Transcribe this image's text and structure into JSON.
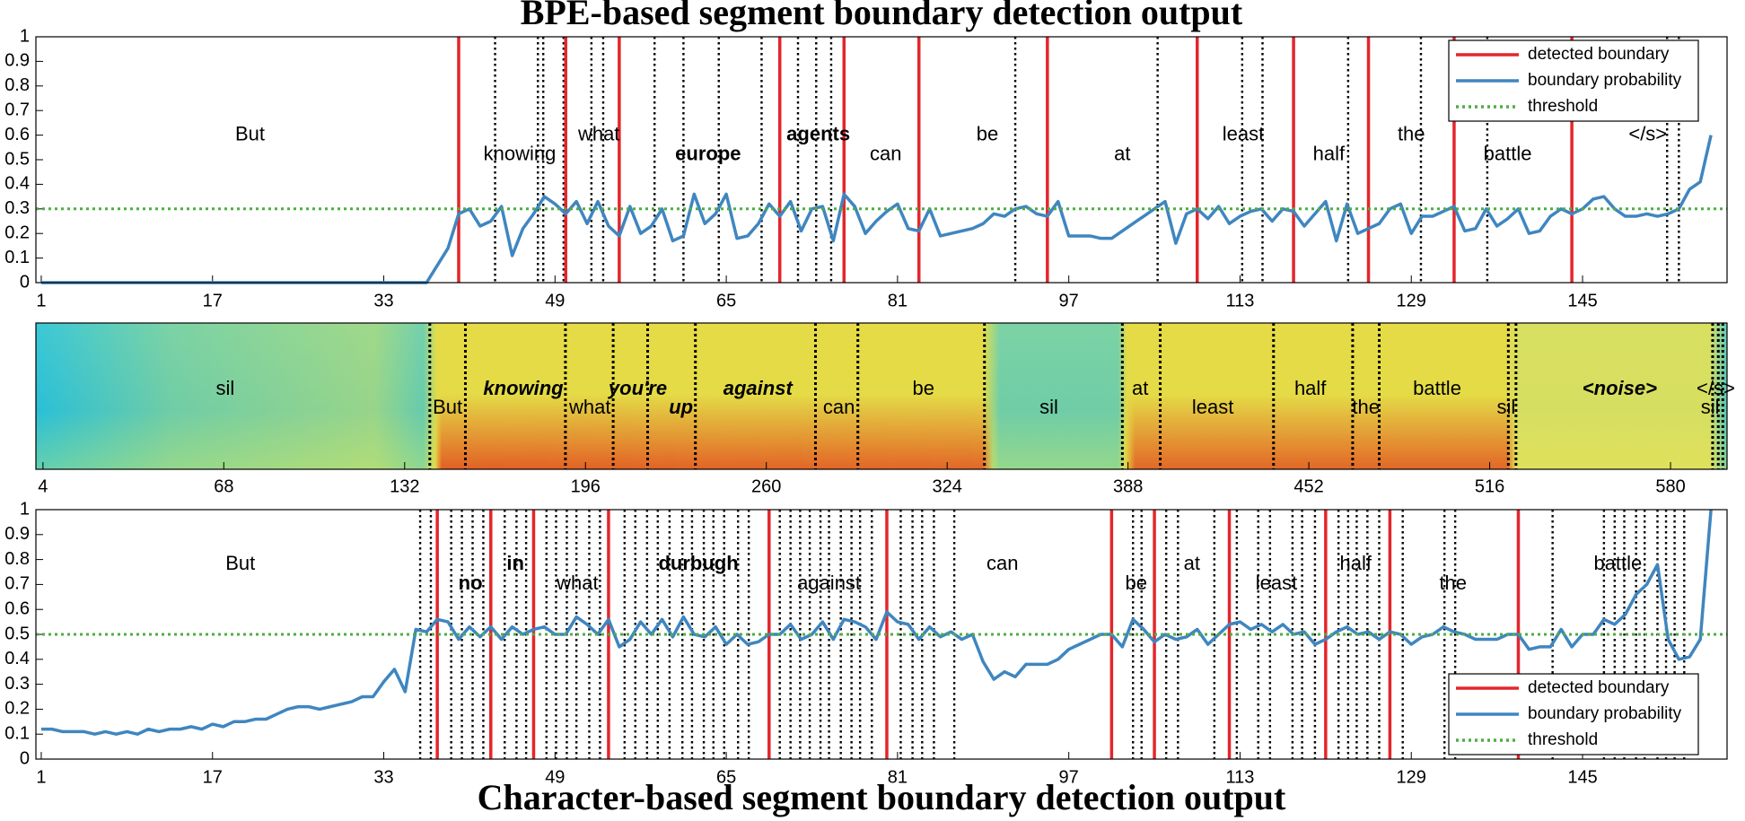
{
  "chart_data": [
    {
      "type": "line",
      "title": "BPE-based segment boundary detection output",
      "x": [
        1,
        2,
        3,
        4,
        5,
        6,
        7,
        8,
        9,
        10,
        11,
        12,
        13,
        14,
        15,
        16,
        17,
        18,
        19,
        20,
        21,
        22,
        23,
        24,
        25,
        26,
        27,
        28,
        29,
        30,
        31,
        32,
        33,
        34,
        35,
        36,
        37,
        38,
        39,
        40,
        41,
        42,
        43,
        44,
        45,
        46,
        47,
        48,
        49,
        50,
        51,
        52,
        53,
        54,
        55,
        56,
        57,
        58,
        59,
        60,
        61,
        62,
        63,
        64,
        65,
        66,
        67,
        68,
        69,
        70,
        71,
        72,
        73,
        74,
        75,
        76,
        77,
        78,
        79,
        80,
        81,
        82,
        83,
        84,
        85,
        86,
        87,
        88,
        89,
        90,
        91,
        92,
        93,
        94,
        95,
        96,
        97,
        98,
        99,
        100,
        101,
        102,
        103,
        104,
        105,
        106,
        107,
        108,
        109,
        110,
        111,
        112,
        113,
        114,
        115,
        116,
        117,
        118,
        119,
        120,
        121,
        122,
        123,
        124,
        125,
        126,
        127,
        128,
        129,
        130,
        131,
        132,
        133,
        134,
        135,
        136,
        137,
        138,
        139,
        140,
        141,
        142,
        143,
        144,
        145,
        146,
        147,
        148,
        149,
        150,
        151,
        152,
        153,
        154,
        155,
        156,
        157
      ],
      "series": [
        {
          "name": "detected boundary",
          "color": "#e3262c",
          "x": [
            40,
            50,
            55,
            70,
            76,
            83,
            95,
            109,
            118,
            125,
            133,
            144
          ]
        },
        {
          "name": "boundary probability",
          "color": "#3f86c0",
          "values": [
            0,
            0,
            0,
            0,
            0,
            0,
            0,
            0,
            0,
            0,
            0,
            0,
            0,
            0,
            0,
            0,
            0,
            0,
            0,
            0,
            0,
            0,
            0,
            0,
            0,
            0,
            0,
            0,
            0,
            0,
            0,
            0,
            0,
            0,
            0,
            0,
            0,
            0.07,
            0.14,
            0.28,
            0.3,
            0.23,
            0.25,
            0.31,
            0.11,
            0.22,
            0.28,
            0.35,
            0.32,
            0.28,
            0.33,
            0.24,
            0.33,
            0.23,
            0.19,
            0.31,
            0.2,
            0.23,
            0.3,
            0.17,
            0.19,
            0.36,
            0.24,
            0.28,
            0.36,
            0.18,
            0.19,
            0.24,
            0.32,
            0.27,
            0.33,
            0.21,
            0.3,
            0.31,
            0.17,
            0.36,
            0.31,
            0.2,
            0.25,
            0.29,
            0.32,
            0.22,
            0.21,
            0.3,
            0.19,
            0.2,
            0.21,
            0.22,
            0.24,
            0.28,
            0.27,
            0.3,
            0.31,
            0.28,
            0.27,
            0.33,
            0.19,
            0.19,
            0.19,
            0.18,
            0.18,
            0.21,
            0.24,
            0.27,
            0.3,
            0.33,
            0.16,
            0.28,
            0.3,
            0.26,
            0.31,
            0.24,
            0.27,
            0.29,
            0.3,
            0.25,
            0.3,
            0.29,
            0.23,
            0.28,
            0.33,
            0.17,
            0.32,
            0.2,
            0.22,
            0.24,
            0.3,
            0.32,
            0.2,
            0.27,
            0.27,
            0.29,
            0.31,
            0.21,
            0.22,
            0.3,
            0.23,
            0.26,
            0.3,
            0.2,
            0.21,
            0.27,
            0.3,
            0.28,
            0.3,
            0.34,
            0.35,
            0.3,
            0.27,
            0.27,
            0.28,
            0.27,
            0.28,
            0.3,
            0.38,
            0.41,
            0.6
          ]
        },
        {
          "name": "threshold",
          "color": "#4fad44",
          "value": 0.3
        }
      ],
      "reference_boundaries": [
        43.4,
        47.4,
        47.9,
        49.8,
        52.4,
        53.5,
        58.3,
        61,
        64.3,
        68.3,
        71.7,
        73.4,
        74.8,
        92,
        105.3,
        113.2,
        115.1,
        123.1,
        129.9,
        136.1,
        152.9,
        154
      ],
      "words": [
        {
          "text": "But",
          "x": 20.5,
          "y": 0.6
        },
        {
          "text": "knowing",
          "x": 45.7,
          "y": 0.52
        },
        {
          "text": "what",
          "x": 53.1,
          "y": 0.6
        },
        {
          "text": "europe",
          "x": 63.3,
          "y": 0.52,
          "color": "#e3262c",
          "style": "bold"
        },
        {
          "text": "agents",
          "x": 73.6,
          "y": 0.6,
          "color": "#e3262c",
          "style": "bold"
        },
        {
          "text": "can",
          "x": 79.9,
          "y": 0.52
        },
        {
          "text": "be",
          "x": 89.4,
          "y": 0.6
        },
        {
          "text": "at",
          "x": 102,
          "y": 0.52
        },
        {
          "text": "least",
          "x": 113.3,
          "y": 0.6
        },
        {
          "text": "half",
          "x": 121.3,
          "y": 0.52
        },
        {
          "text": "the",
          "x": 129,
          "y": 0.6
        },
        {
          "text": "battle",
          "x": 138,
          "y": 0.52
        },
        {
          "text": "</s>",
          "x": 151.1,
          "y": 0.6
        }
      ],
      "xlim": [
        0.5,
        158.5
      ],
      "xticks": [
        1,
        17,
        33,
        49,
        65,
        81,
        97,
        113,
        129,
        145
      ],
      "ylim": [
        0,
        1
      ],
      "yticks": [
        0,
        0.1,
        0.2,
        0.3,
        0.4,
        0.5,
        0.6,
        0.7,
        0.8,
        0.9,
        1
      ],
      "legend": "upper right"
    },
    {
      "type": "spectrogram",
      "xlim": [
        1.5,
        600
      ],
      "xticks": [
        4,
        68,
        132,
        196,
        260,
        324,
        388,
        452,
        516,
        580
      ],
      "boundaries": [
        140.9,
        153.5,
        188.9,
        205.8,
        218,
        234.9,
        277.4,
        292.4,
        337.2,
        386,
        399.4,
        439.5,
        467.5,
        476.9,
        522.6,
        525.3,
        594.9,
        596.9,
        598.5
      ],
      "words": [
        {
          "text": "sil",
          "x": 68.5
        },
        {
          "text": "But",
          "x": 147.2
        },
        {
          "text": "knowing",
          "x": 174,
          "style": "bold-italic"
        },
        {
          "text": "what",
          "x": 197.6
        },
        {
          "text": "you're",
          "x": 214.5,
          "style": "bold-italic"
        },
        {
          "text": "up",
          "x": 229.8,
          "style": "bold-italic"
        },
        {
          "text": "against",
          "x": 257,
          "style": "bold-italic"
        },
        {
          "text": "can",
          "x": 285.7
        },
        {
          "text": "be",
          "x": 315.6
        },
        {
          "text": "sil",
          "x": 360
        },
        {
          "text": "at",
          "x": 392.3
        },
        {
          "text": "least",
          "x": 418
        },
        {
          "text": "half",
          "x": 452.5
        },
        {
          "text": "the",
          "x": 472.2
        },
        {
          "text": "battle",
          "x": 497.4
        },
        {
          "text": "sil",
          "x": 521.8
        },
        {
          "text": "<noise>",
          "x": 562,
          "color": "#e3262c",
          "style": "bold-italic"
        },
        {
          "text": "sil",
          "x": 594
        },
        {
          "text": "</s>",
          "x": 596
        }
      ]
    },
    {
      "type": "line",
      "title": "Character-based segment boundary detection output",
      "x": [
        1,
        2,
        3,
        4,
        5,
        6,
        7,
        8,
        9,
        10,
        11,
        12,
        13,
        14,
        15,
        16,
        17,
        18,
        19,
        20,
        21,
        22,
        23,
        24,
        25,
        26,
        27,
        28,
        29,
        30,
        31,
        32,
        33,
        34,
        35,
        36,
        37,
        38,
        39,
        40,
        41,
        42,
        43,
        44,
        45,
        46,
        47,
        48,
        49,
        50,
        51,
        52,
        53,
        54,
        55,
        56,
        57,
        58,
        59,
        60,
        61,
        62,
        63,
        64,
        65,
        66,
        67,
        68,
        69,
        70,
        71,
        72,
        73,
        74,
        75,
        76,
        77,
        78,
        79,
        80,
        81,
        82,
        83,
        84,
        85,
        86,
        87,
        88,
        89,
        90,
        91,
        92,
        93,
        94,
        95,
        96,
        97,
        98,
        99,
        100,
        101,
        102,
        103,
        104,
        105,
        106,
        107,
        108,
        109,
        110,
        111,
        112,
        113,
        114,
        115,
        116,
        117,
        118,
        119,
        120,
        121,
        122,
        123,
        124,
        125,
        126,
        127,
        128,
        129,
        130,
        131,
        132,
        133,
        134,
        135,
        136,
        137,
        138,
        139,
        140,
        141,
        142,
        143,
        144,
        145,
        146,
        147,
        148,
        149,
        150,
        151,
        152,
        153,
        154,
        155,
        156,
        157
      ],
      "series": [
        {
          "name": "detected boundary",
          "color": "#e3262c",
          "x": [
            38,
            43,
            47,
            54,
            69,
            80,
            101,
            105,
            112,
            121,
            127,
            139
          ]
        },
        {
          "name": "boundary probability",
          "color": "#3f86c0",
          "values": [
            0.12,
            0.12,
            0.11,
            0.11,
            0.11,
            0.1,
            0.11,
            0.1,
            0.11,
            0.1,
            0.12,
            0.11,
            0.12,
            0.12,
            0.13,
            0.12,
            0.14,
            0.13,
            0.15,
            0.15,
            0.16,
            0.16,
            0.18,
            0.2,
            0.21,
            0.21,
            0.2,
            0.21,
            0.22,
            0.23,
            0.25,
            0.25,
            0.31,
            0.36,
            0.27,
            0.52,
            0.51,
            0.56,
            0.55,
            0.48,
            0.53,
            0.49,
            0.53,
            0.48,
            0.53,
            0.5,
            0.52,
            0.53,
            0.5,
            0.5,
            0.57,
            0.54,
            0.5,
            0.56,
            0.45,
            0.48,
            0.55,
            0.5,
            0.56,
            0.49,
            0.57,
            0.5,
            0.49,
            0.53,
            0.46,
            0.5,
            0.46,
            0.47,
            0.5,
            0.5,
            0.54,
            0.48,
            0.5,
            0.55,
            0.48,
            0.56,
            0.55,
            0.53,
            0.48,
            0.59,
            0.55,
            0.54,
            0.48,
            0.53,
            0.49,
            0.51,
            0.48,
            0.5,
            0.39,
            0.32,
            0.35,
            0.33,
            0.38,
            0.38,
            0.38,
            0.4,
            0.44,
            0.46,
            0.48,
            0.5,
            0.5,
            0.45,
            0.56,
            0.52,
            0.47,
            0.5,
            0.48,
            0.49,
            0.52,
            0.46,
            0.5,
            0.54,
            0.55,
            0.52,
            0.54,
            0.51,
            0.54,
            0.5,
            0.51,
            0.46,
            0.48,
            0.51,
            0.53,
            0.5,
            0.51,
            0.48,
            0.51,
            0.5,
            0.46,
            0.49,
            0.5,
            0.53,
            0.51,
            0.5,
            0.48,
            0.48,
            0.48,
            0.5,
            0.5,
            0.44,
            0.45,
            0.45,
            0.52,
            0.45,
            0.5,
            0.5,
            0.56,
            0.54,
            0.58,
            0.66,
            0.7,
            0.78,
            0.48,
            0.4,
            0.41,
            0.48,
            1.0
          ]
        },
        {
          "name": "threshold",
          "color": "#4fad44",
          "value": 0.5
        }
      ],
      "reference_boundaries": [
        36.4,
        37.4,
        39.3,
        40.3,
        41.3,
        42.3,
        44.3,
        45.4,
        46.3,
        48.2,
        49.1,
        50.1,
        51,
        52.2,
        53.2,
        55.5,
        56.5,
        57.6,
        58.6,
        59.7,
        60.9,
        61.8,
        62.9,
        63.8,
        64.8,
        66.1,
        67.1,
        70,
        71,
        71.9,
        72.8,
        73.8,
        74.6,
        75.7,
        76.7,
        77.5,
        78.6,
        81.3,
        82.4,
        83.3,
        84.4,
        86.3,
        103,
        103.8,
        106.1,
        107.2,
        110.6,
        112.7,
        114.7,
        115.8,
        117.9,
        118.8,
        120,
        122.2,
        123.1,
        123.9,
        124.9,
        126,
        128.2,
        132.1,
        133.1,
        142.2,
        147,
        148,
        148.9,
        150,
        150.8,
        152,
        152.8,
        153.6,
        154.5
      ],
      "words": [
        {
          "text": "But",
          "x": 19.6,
          "y": 0.78
        },
        {
          "text": "no",
          "x": 41.1,
          "y": 0.7,
          "color": "#e3262c",
          "style": "bold"
        },
        {
          "text": "in",
          "x": 45.3,
          "y": 0.78,
          "color": "#e3262c",
          "style": "bold"
        },
        {
          "text": "what",
          "x": 51.1,
          "y": 0.7
        },
        {
          "text": "durbugh",
          "x": 62.4,
          "y": 0.78,
          "color": "#e3262c",
          "style": "bold"
        },
        {
          "text": "against",
          "x": 74.6,
          "y": 0.7
        },
        {
          "text": "can",
          "x": 90.8,
          "y": 0.78
        },
        {
          "text": "be",
          "x": 103.3,
          "y": 0.7
        },
        {
          "text": "at",
          "x": 108.5,
          "y": 0.78
        },
        {
          "text": "least",
          "x": 116.4,
          "y": 0.7
        },
        {
          "text": "half",
          "x": 123.8,
          "y": 0.78
        },
        {
          "text": "the",
          "x": 132.9,
          "y": 0.7
        },
        {
          "text": "battle",
          "x": 148.3,
          "y": 0.78
        }
      ],
      "xlim": [
        0.5,
        158.5
      ],
      "xticks": [
        1,
        17,
        33,
        49,
        65,
        81,
        97,
        113,
        129,
        145
      ],
      "ylim": [
        0,
        1
      ],
      "yticks": [
        0,
        0.1,
        0.2,
        0.3,
        0.4,
        0.5,
        0.6,
        0.7,
        0.8,
        0.9,
        1
      ],
      "legend": "lower right"
    }
  ]
}
